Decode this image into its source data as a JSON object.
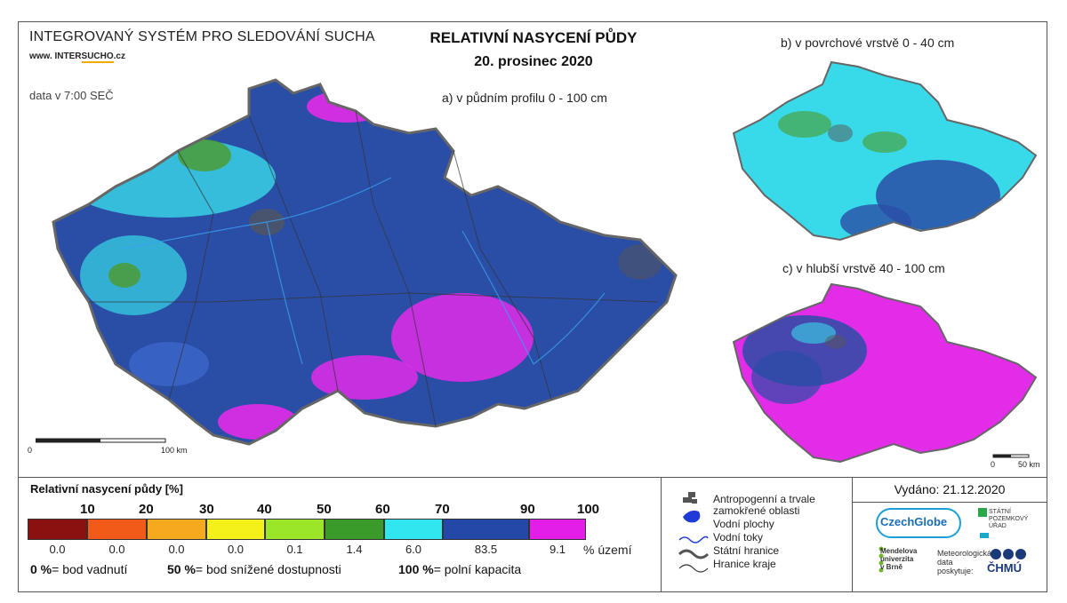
{
  "header": {
    "system_title": "INTEGROVANÝ SYSTÉM PRO SLEDOVÁNÍ SUCHA",
    "url_prefix": "www. INTER",
    "url_highlight": "SUCHO",
    "url_suffix": ".cz",
    "data_time": "data v 7:00 SEČ",
    "main_title": "RELATIVNÍ NASYCENÍ PŮDY",
    "date": "20. prosinec 2020"
  },
  "maps": {
    "a_label": "a) v půdním profilu 0 - 100 cm",
    "b_label": "b) v povrchové vrstvě 0 - 40 cm",
    "c_label": "c) v hlubší vrstvě 40 - 100 cm",
    "scale_main": {
      "zero": "0",
      "end": "100 km"
    },
    "scale_small": {
      "zero": "0",
      "end": "50 km"
    },
    "colors": {
      "deep_blue": "#2a4da6",
      "cyan": "#38d9e8",
      "magenta": "#e22ce8",
      "green": "#4d9a2a",
      "gray": "#555555"
    }
  },
  "legend": {
    "title": "Relativní nasycení půdy [%]",
    "thresholds": [
      "10",
      "20",
      "30",
      "40",
      "50",
      "60",
      "70",
      "90",
      "100"
    ],
    "classes": [
      {
        "color": "#8b1010",
        "share": "0.0"
      },
      {
        "color": "#f25a1a",
        "share": "0.0"
      },
      {
        "color": "#f5a91e",
        "share": "0.0"
      },
      {
        "color": "#f4f01a",
        "share": "0.0"
      },
      {
        "color": "#9ce62a",
        "share": "0.1"
      },
      {
        "color": "#3a9a2a",
        "share": "1.4"
      },
      {
        "color": "#31e6ee",
        "share": "6.0"
      },
      {
        "color": "#2448a8",
        "share": "83.5"
      },
      {
        "color": "#e21ee8",
        "share": "9.1"
      }
    ],
    "share_unit": "% území",
    "note_wilting_value": "0 %",
    "note_wilting_text": "= bod vadnutí",
    "note_reduced_value": "50 %",
    "note_reduced_text": "= bod snížené dostupnosti",
    "note_capacity_value": "100 %",
    "note_capacity_text": "= polní kapacita"
  },
  "map_legend": {
    "anthropogenic_1": "Antropogenní a trvale",
    "anthropogenic_2": "zamokřené oblasti",
    "water_bodies": "Vodní plochy",
    "streams": "Vodní toky",
    "state_border": "Státní hranice",
    "region_border": "Hranice kraje"
  },
  "footer": {
    "issued": "Vydáno: 21.12.2020",
    "czechglobe": "CzechGlobe",
    "spu_1": "STÁTNÍ",
    "spu_2": "POZEMKOVÝ",
    "spu_3": "ÚŘAD",
    "mendel_1": "Mendelova",
    "mendel_2": "univerzita",
    "mendel_3": "v Brně",
    "meteo_1": "Meteorologická",
    "meteo_2": "data",
    "meteo_3": "poskytuje:",
    "chmu": "ČHMÚ"
  }
}
